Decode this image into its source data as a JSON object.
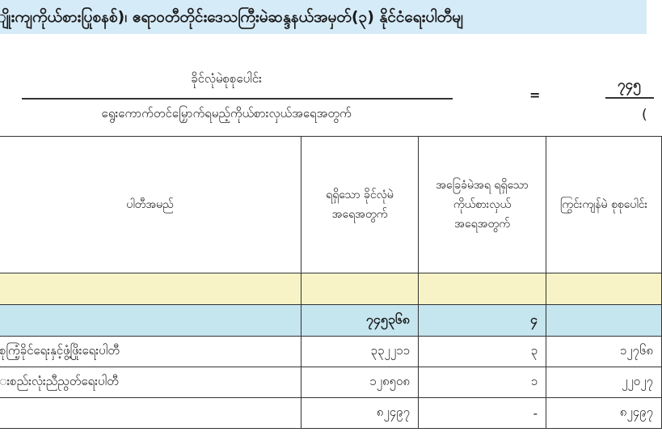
{
  "banner": {
    "title": "ျိုးကျကိုယ်စားပြုစနစ်)၊ ဧရာဝတီတိုင်းဒေသကြီးမဲဆန္ဒနယ်အမှတ်(၃) နိုင်ငံရေးပါတီမျ"
  },
  "formula": {
    "numerator": "ခိုင်လုံမဲစုစုပေါင်း",
    "denominator": "ရွေးကောက်တင်မြှောက်ရမည့်ကိုယ်စားလှယ်အရေအတွက်",
    "equals": "=",
    "result_numerator": "၇၄၅",
    "result_denominator": "("
  },
  "table": {
    "headers": [
      "ပါတီအမည်",
      "ရရှိသော ခိုင်လုံမဲ အရေအတွက်",
      "အခြေခံမဲအရ ရရှိသော ကိုယ်စားလှယ် အရေအတွက်",
      "ကြွင်းကျန်မဲ စုစုပေါင်း"
    ],
    "total": {
      "votes": "၇၄၅၃၆၈",
      "seats": "၄",
      "remaining": ""
    },
    "rows": [
      {
        "party": "စုကြံ့ခိုင်ရေးနှင့်ဖွံ့ဖြိုးရေးပါတီ",
        "votes": "၃၃၂၂၁၁",
        "seats": "၃",
        "remaining": "၁၂၇၆၈"
      },
      {
        "party": "းစည်းလုံးညီညွတ်ရေးပါတီ",
        "votes": "၁၂၈၅၀၈",
        "seats": "၁",
        "remaining": "၂၂၀၂၇"
      },
      {
        "party": "",
        "votes": "၈၂၄၉၇",
        "seats": "-",
        "remaining": "၈၂၄၉၇"
      }
    ]
  },
  "colors": {
    "banner": "#d6ebf8",
    "yellow_row": "#f8f3c6",
    "total_row": "#c5e5ef"
  }
}
